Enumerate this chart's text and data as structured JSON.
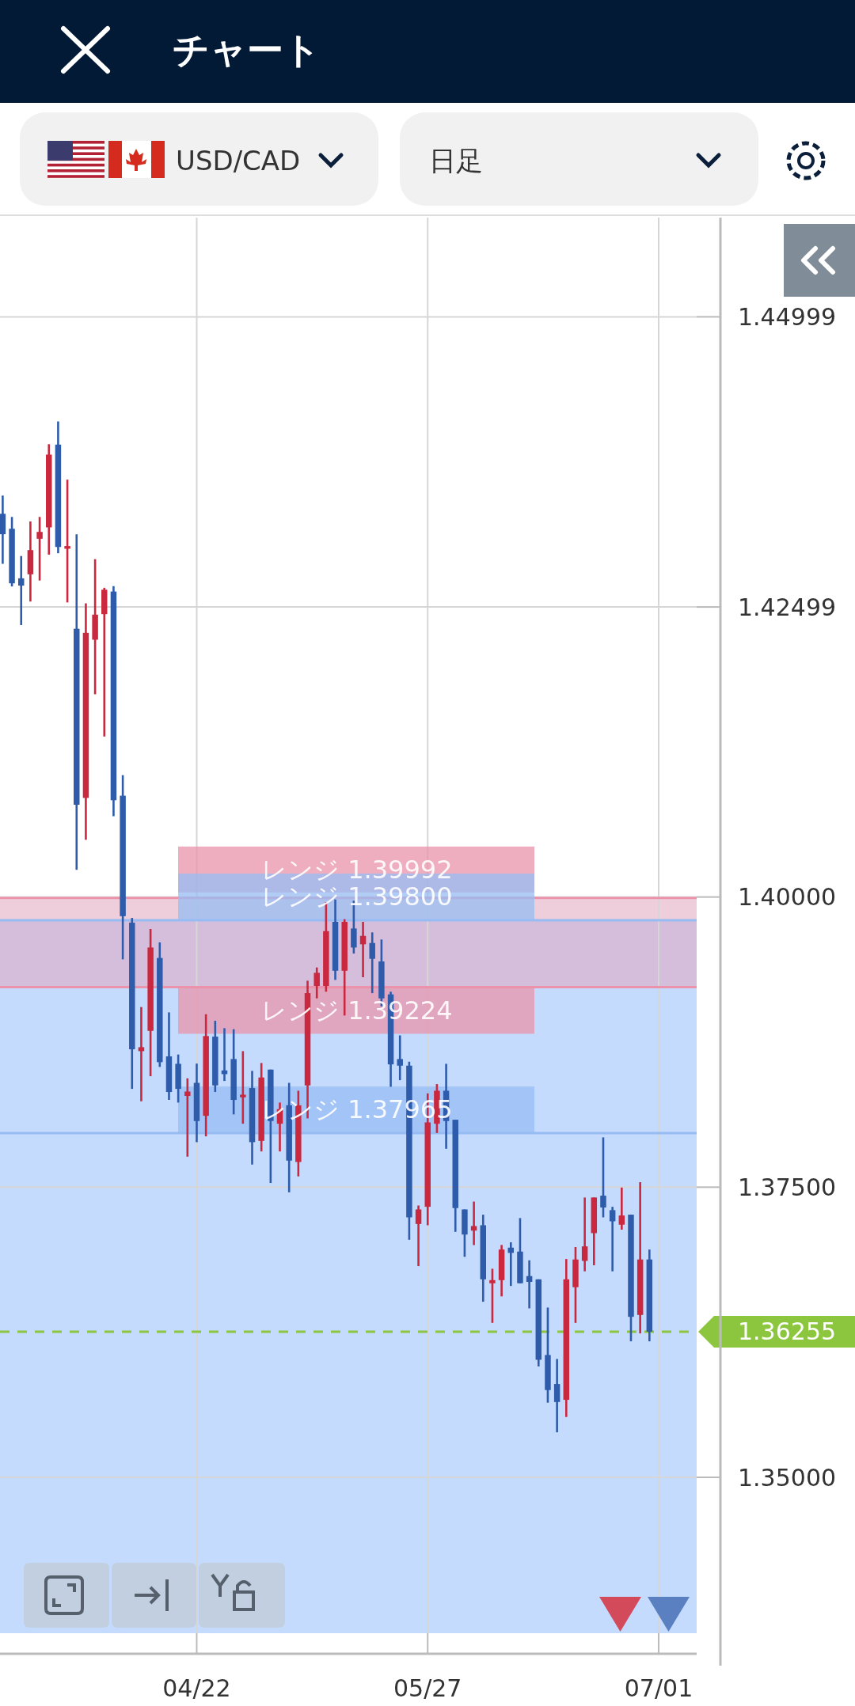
{
  "chart_data": {
    "type": "candlestick",
    "title": "チャート",
    "annotations": [
      "USD/CAD",
      "日足"
    ],
    "categories": [
      null,
      null,
      null,
      null,
      null,
      null,
      null,
      null,
      null,
      null,
      null,
      null,
      null,
      null,
      null,
      null,
      null,
      null,
      null,
      null,
      null,
      "04/22",
      null,
      null,
      null,
      null,
      null,
      null,
      null,
      null,
      null,
      null,
      null,
      null,
      null,
      null,
      null,
      null,
      null,
      null,
      null,
      null,
      null,
      null,
      null,
      null,
      "05/27",
      null,
      null,
      null,
      null,
      null,
      null,
      null,
      null,
      null,
      null,
      null,
      null,
      null,
      null,
      null,
      null,
      null,
      null,
      null,
      null,
      null,
      null,
      null,
      null,
      "07/01"
    ],
    "ohlc": [
      [
        1.43302,
        1.43459,
        1.42871,
        1.43126
      ],
      [
        1.43173,
        1.43275,
        1.42676,
        1.42703
      ],
      [
        1.42746,
        1.42938,
        1.42343,
        1.42683
      ],
      [
        1.42781,
        1.43236,
        1.42546,
        1.42989
      ],
      [
        1.43087,
        1.43275,
        1.42727,
        1.43146
      ],
      [
        1.43185,
        1.43902,
        1.4295,
        1.43812
      ],
      [
        1.43898,
        1.44098,
        1.42962,
        1.43016
      ],
      [
        1.43001,
        1.43596,
        1.42538,
        1.43024
      ],
      [
        1.42311,
        1.43126,
        1.40235,
        1.40795
      ],
      [
        1.40854,
        1.42531,
        1.40493,
        1.42276
      ],
      [
        1.42217,
        1.42911,
        1.41747,
        1.42433
      ],
      [
        1.42437,
        1.42664,
        1.41383,
        1.42648
      ],
      [
        1.42632,
        1.42679,
        1.40697,
        1.40834
      ],
      [
        1.40873,
        1.4105,
        1.39463,
        1.39835
      ],
      [
        1.39779,
        1.3982,
        1.38347,
        1.38688
      ],
      [
        1.38672,
        1.39052,
        1.3824,
        1.38706
      ],
      [
        1.38847,
        1.39725,
        1.38456,
        1.39565
      ],
      [
        1.39475,
        1.39609,
        1.38536,
        1.38577
      ],
      [
        1.38627,
        1.39006,
        1.38252,
        1.3832
      ],
      [
        1.38563,
        1.38643,
        1.38229,
        1.38347
      ],
      [
        1.38286,
        1.38438,
        1.37763,
        1.38324
      ],
      [
        1.38399,
        1.38565,
        1.37888,
        1.3807
      ],
      [
        1.38115,
        1.3899,
        1.37938,
        1.38802
      ],
      [
        1.38797,
        1.38934,
        1.3832,
        1.38377
      ],
      [
        1.38506,
        1.3887,
        1.38415,
        1.38474
      ],
      [
        1.38604,
        1.38861,
        1.38127,
        1.38252
      ],
      [
        1.38274,
        1.38672,
        1.38047,
        1.38297
      ],
      [
        1.38354,
        1.38502,
        1.37695,
        1.37888
      ],
      [
        1.37899,
        1.3857,
        1.37808,
        1.38445
      ],
      [
        1.38513,
        1.38513,
        1.37536,
        1.3807
      ],
      [
        1.38047,
        1.38229,
        1.37808,
        1.38172
      ],
      [
        1.38206,
        1.38399,
        1.37456,
        1.37729
      ],
      [
        1.37717,
        1.38331,
        1.37593,
        1.38206
      ],
      [
        1.38377,
        1.39279,
        1.38093,
        1.39172
      ],
      [
        1.39234,
        1.39393,
        1.39127,
        1.39347
      ],
      [
        1.39234,
        1.39956,
        1.39184,
        1.39706
      ],
      [
        1.39786,
        1.39979,
        1.39286,
        1.39365
      ],
      [
        1.39365,
        1.39809,
        1.38979,
        1.39786
      ],
      [
        1.39729,
        1.39968,
        1.39513,
        1.39565
      ],
      [
        1.39593,
        1.39786,
        1.39309,
        1.39665
      ],
      [
        1.39604,
        1.39695,
        1.39172,
        1.39468
      ],
      [
        1.39445,
        1.39634,
        1.39058,
        1.39127
      ],
      [
        1.39161,
        1.39184,
        1.38365,
        1.38558
      ],
      [
        1.38604,
        1.38808,
        1.38422,
        1.38547
      ],
      [
        1.38547,
        1.38581,
        1.37047,
        1.3724
      ],
      [
        1.37183,
        1.37342,
        1.3682,
        1.37308
      ],
      [
        1.37331,
        1.38308,
        1.37172,
        1.38058
      ],
      [
        1.38047,
        1.38388,
        1.37967,
        1.38331
      ],
      [
        1.38331,
        1.38563,
        1.37831,
        1.3807
      ],
      [
        1.38081,
        1.38081,
        1.37115,
        1.3732
      ],
      [
        1.37308,
        1.37308,
        1.369,
        1.37092
      ],
      [
        1.37126,
        1.37376,
        1.37001,
        1.37165
      ],
      [
        1.37172,
        1.37263,
        1.36513,
        1.36706
      ],
      [
        1.36672,
        1.36797,
        1.36331,
        1.36699
      ],
      [
        1.36699,
        1.37002,
        1.36559,
        1.36963
      ],
      [
        1.36979,
        1.37025,
        1.36649,
        1.36934
      ],
      [
        1.36945,
        1.37234,
        1.36672,
        1.36672
      ],
      [
        1.36734,
        1.3687,
        1.36456,
        1.36684
      ],
      [
        1.36706,
        1.36706,
        1.35956,
        1.36013
      ],
      [
        1.36054,
        1.36463,
        1.35643,
        1.35752
      ],
      [
        1.35804,
        1.3602,
        1.35388,
        1.35649
      ],
      [
        1.35668,
        1.36881,
        1.3552,
        1.36706
      ],
      [
        1.36638,
        1.36984,
        1.36331,
        1.36877
      ],
      [
        1.36865,
        1.37411,
        1.36775,
        1.3699
      ],
      [
        1.37104,
        1.37411,
        1.36827,
        1.37411
      ],
      [
        1.37427,
        1.37929,
        1.3724,
        1.37325
      ],
      [
        1.37302,
        1.37331,
        1.36775,
        1.37206
      ],
      [
        1.37177,
        1.37497,
        1.37134,
        1.37256
      ],
      [
        1.37263,
        1.37263,
        1.36172,
        1.36383
      ],
      [
        1.36399,
        1.37543,
        1.3624,
        1.36877
      ],
      [
        1.36877,
        1.36963,
        1.36172,
        1.36255
      ],
      null
    ],
    "colors": [
      "#2e5caa",
      "#2e5caa",
      "#2e5caa",
      "#c9283e",
      "#c9283e",
      "#c9283e",
      "#2e5caa",
      "#c9283e",
      "#2e5caa",
      "#c9283e",
      "#c9283e",
      "#c9283e",
      "#2e5caa",
      "#2e5caa",
      "#2e5caa",
      "#c9283e",
      "#c9283e",
      "#2e5caa",
      "#2e5caa",
      "#2e5caa",
      "#c9283e",
      "#2e5caa",
      "#c9283e",
      "#2e5caa",
      "#2e5caa",
      "#2e5caa",
      "#c9283e",
      "#2e5caa",
      "#c9283e",
      "#2e5caa",
      "#c9283e",
      "#2e5caa",
      "#c9283e",
      "#c9283e",
      "#c9283e",
      "#c9283e",
      "#2e5caa",
      "#c9283e",
      "#2e5caa",
      "#c9283e",
      "#2e5caa",
      "#2e5caa",
      "#2e5caa",
      "#2e5caa",
      "#2e5caa",
      "#c9283e",
      "#c9283e",
      "#c9283e",
      "#2e5caa",
      "#2e5caa",
      "#2e5caa",
      "#c9283e",
      "#2e5caa",
      "#c9283e",
      "#c9283e",
      "#2e5caa",
      "#2e5caa",
      "#2e5caa",
      "#2e5caa",
      "#2e5caa",
      "#2e5caa",
      "#c9283e",
      "#c9283e",
      "#c9283e",
      "#c9283e",
      "#2e5caa",
      "#2e5caa",
      "#c9283e",
      "#2e5caa",
      "#c9283e",
      "#2e5caa",
      null
    ],
    "ylim": [
      1.33657,
      1.45854
    ],
    "yticks": [
      {
        "value": 1.44999,
        "label": "1.44999"
      },
      {
        "value": 1.42499,
        "label": "1.42499"
      },
      {
        "value": 1.4,
        "label": "1.40000"
      },
      {
        "value": 1.375,
        "label": "1.37500"
      },
      {
        "value": 1.35,
        "label": "1.35000"
      }
    ],
    "grid": true,
    "bands": [
      {
        "axis": "y",
        "from": 1.33657,
        "to": 1.398,
        "color": "#c4dbfd"
      },
      {
        "axis": "y",
        "from": 1.39224,
        "to": 1.39992,
        "color": "#e2a6c0"
      }
    ],
    "ref_lines": [
      {
        "axis": "y",
        "value": 1.39992,
        "label": "レンジ 1.39992",
        "color": "#ea93aa",
        "line_style": "solid"
      },
      {
        "axis": "y",
        "value": 1.398,
        "label": "レンジ 1.39800",
        "color": "#97bcf3",
        "line_style": "solid"
      },
      {
        "axis": "y",
        "value": 1.39224,
        "label": "レンジ 1.39224",
        "color": "#ea93aa",
        "line_style": "solid"
      },
      {
        "axis": "y",
        "value": 1.37965,
        "label": "レンジ 1.37965",
        "color": "#97bcf3",
        "line_style": "solid"
      },
      {
        "axis": "y",
        "value": 1.36255,
        "label": "1.36255",
        "color": "#8cc63f",
        "line_style": "dashed"
      }
    ]
  }
}
